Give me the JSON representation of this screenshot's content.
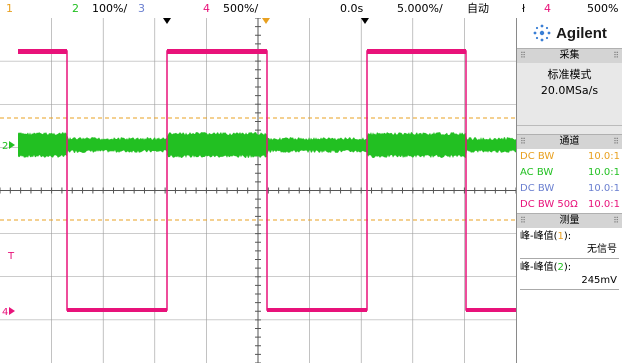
{
  "topbar": {
    "ch1": "1",
    "ch2": "2",
    "ch2_scale": "100%/",
    "ch3": "3",
    "ch4": "4",
    "ch4_scale": "500%/",
    "time_offset": "0.0s",
    "time_scale": "5.000%/",
    "mode": "自动",
    "trig_icon": "ł",
    "trig_ch": "4",
    "trig_level": "500%"
  },
  "panel": {
    "brand": "Agilent",
    "acq_header": "采集",
    "acq_mode": "标准模式",
    "sample_rate": "20.0MSa/s",
    "channels_header": "通道",
    "channels": [
      {
        "label": "DC BW",
        "ratio": "10.0:1",
        "color": "#e8a020"
      },
      {
        "label": "AC BW",
        "ratio": "10.0:1",
        "color": "#22c022"
      },
      {
        "label": "DC BW",
        "ratio": "10.0:1",
        "color": "#6a7fd0"
      },
      {
        "label": "DC BW 50Ω",
        "ratio": "10.0:1",
        "color": "#e8127a"
      }
    ],
    "meas_header": "测量",
    "meas": [
      {
        "label_pre": "峰-峰值(",
        "ch": "1",
        "label_post": "):",
        "value": "无信号",
        "ch_color": "#e8a020"
      },
      {
        "label_pre": "峰-峰值(",
        "ch": "2",
        "label_post": "):",
        "value": "245mV",
        "ch_color": "#22c022"
      }
    ]
  },
  "markers": {
    "ch2": "2",
    "trig": "T",
    "ch4": "4"
  },
  "colors": {
    "ch1": "#e8a020",
    "ch2": "#22c022",
    "ch3": "#6a7fd0",
    "ch4": "#e8127a",
    "grid": "#606060"
  }
}
